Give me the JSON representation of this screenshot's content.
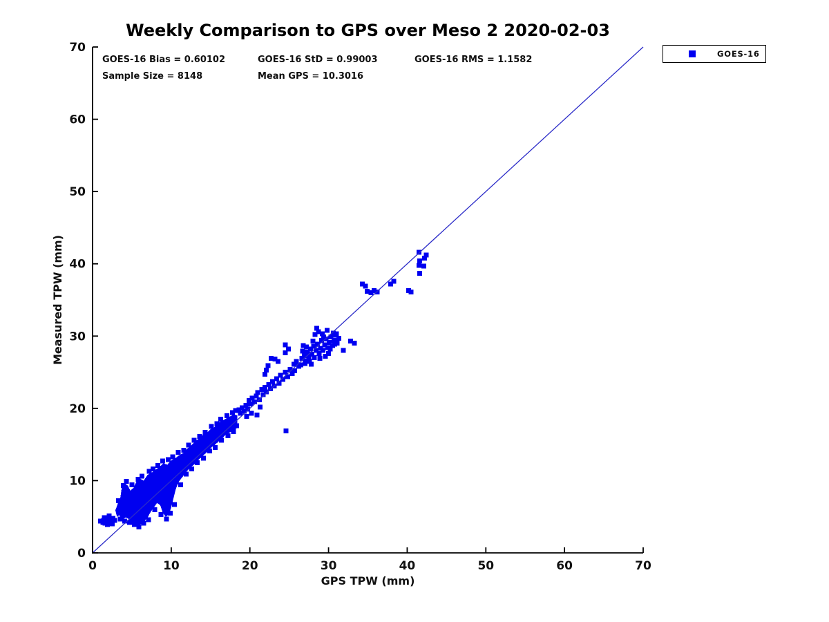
{
  "title": "Weekly Comparison to GPS over Meso 2 2020-02-03",
  "stats_text": {
    "bias": "GOES-16 Bias = 0.60102",
    "std": "GOES-16 StD = 0.99003",
    "rms": "GOES-16 RMS = 1.1582",
    "sample_size": "Sample Size = 8148",
    "mean_gps": "Mean GPS = 10.3016"
  },
  "legend": {
    "label": "GOES-16",
    "marker_color": "#0000f0"
  },
  "axes": {
    "xlabel": "GPS TPW (mm)",
    "ylabel": "Measured TPW (mm)"
  },
  "chart_data": {
    "type": "scatter",
    "title": "Weekly Comparison to GPS over Meso 2 2020-02-03",
    "xlabel": "GPS TPW (mm)",
    "ylabel": "Measured TPW (mm)",
    "xlim": [
      0,
      70
    ],
    "ylim": [
      0,
      70
    ],
    "xticks": [
      0,
      10,
      20,
      30,
      40,
      50,
      60,
      70
    ],
    "yticks": [
      0,
      10,
      20,
      30,
      40,
      50,
      60,
      70
    ],
    "grid": false,
    "legend_position": "top-right-outside",
    "stats": {
      "bias": 0.60102,
      "std": 0.99003,
      "rms": 1.1582,
      "sample_size": 8148,
      "mean_gps": 10.3016
    },
    "identity_line": {
      "from": [
        0,
        0
      ],
      "to": [
        70,
        70
      ],
      "color": "#2b2bc8"
    },
    "series": [
      {
        "name": "GOES-16",
        "marker": "square",
        "color": "#0000f0",
        "marker_size_px": 7,
        "band_top": [
          [
            2.9,
            5.9
          ],
          [
            3.2,
            6.8
          ],
          [
            3.5,
            7.4
          ],
          [
            3.7,
            8.9
          ],
          [
            4.1,
            9.6
          ],
          [
            4.5,
            9.3
          ],
          [
            4.8,
            8.6
          ],
          [
            5.2,
            9.0
          ],
          [
            5.6,
            9.9
          ],
          [
            6.0,
            10.3
          ],
          [
            6.5,
            10.0
          ],
          [
            7.0,
            10.8
          ],
          [
            7.5,
            11.1
          ],
          [
            8.0,
            11.5
          ],
          [
            8.5,
            11.9
          ],
          [
            9.0,
            12.4
          ],
          [
            9.5,
            12.2
          ],
          [
            10.0,
            12.8
          ],
          [
            10.5,
            13.1
          ],
          [
            11.0,
            13.5
          ],
          [
            11.5,
            13.8
          ],
          [
            12.0,
            14.4
          ],
          [
            12.5,
            14.8
          ],
          [
            13.0,
            15.4
          ],
          [
            13.5,
            15.8
          ],
          [
            14.0,
            16.3
          ],
          [
            14.5,
            16.6
          ],
          [
            15.0,
            17.1
          ],
          [
            15.5,
            17.4
          ],
          [
            16.0,
            18.0
          ],
          [
            16.5,
            18.3
          ],
          [
            17.0,
            18.6
          ],
          [
            17.5,
            18.9
          ],
          [
            18.0,
            19.2
          ],
          [
            18.4,
            19.0
          ],
          [
            18.4,
            17.3
          ]
        ],
        "band_bottom": [
          [
            18.0,
            17.0
          ],
          [
            17.5,
            16.7
          ],
          [
            17.0,
            16.4
          ],
          [
            16.5,
            15.9
          ],
          [
            16.0,
            15.4
          ],
          [
            15.5,
            14.9
          ],
          [
            15.0,
            14.5
          ],
          [
            14.5,
            13.9
          ],
          [
            14.0,
            13.4
          ],
          [
            13.5,
            12.9
          ],
          [
            13.0,
            12.3
          ],
          [
            12.5,
            11.9
          ],
          [
            12.0,
            11.3
          ],
          [
            11.5,
            10.6
          ],
          [
            11.0,
            9.9
          ],
          [
            10.6,
            8.9
          ],
          [
            10.3,
            7.6
          ],
          [
            10.0,
            6.3
          ],
          [
            9.7,
            5.3
          ],
          [
            9.3,
            5.0
          ],
          [
            8.9,
            5.6
          ],
          [
            8.6,
            6.6
          ],
          [
            8.2,
            6.9
          ],
          [
            7.8,
            6.3
          ],
          [
            7.4,
            5.7
          ],
          [
            7.0,
            4.9
          ],
          [
            6.6,
            4.4
          ],
          [
            6.2,
            4.0
          ],
          [
            5.8,
            3.8
          ],
          [
            5.4,
            4.1
          ],
          [
            5.0,
            4.0
          ],
          [
            4.6,
            4.7
          ],
          [
            4.2,
            4.9
          ],
          [
            3.8,
            4.6
          ],
          [
            3.4,
            5.2
          ],
          [
            3.1,
            5.0
          ]
        ],
        "points": [
          [
            1.0,
            4.4
          ],
          [
            1.3,
            4.2
          ],
          [
            1.4,
            4.5
          ],
          [
            1.5,
            4.9
          ],
          [
            1.6,
            4.1
          ],
          [
            1.8,
            4.6
          ],
          [
            1.9,
            3.9
          ],
          [
            2.0,
            4.2
          ],
          [
            2.1,
            5.1
          ],
          [
            2.2,
            4.7
          ],
          [
            2.4,
            4.3
          ],
          [
            2.5,
            4.0
          ],
          [
            2.6,
            4.8
          ],
          [
            2.8,
            4.5
          ],
          [
            3.3,
            7.2
          ],
          [
            3.9,
            9.3
          ],
          [
            4.3,
            9.9
          ],
          [
            5.0,
            9.4
          ],
          [
            5.8,
            10.2
          ],
          [
            6.3,
            10.6
          ],
          [
            7.2,
            11.3
          ],
          [
            7.7,
            11.6
          ],
          [
            8.3,
            12.1
          ],
          [
            8.9,
            12.7
          ],
          [
            9.6,
            12.9
          ],
          [
            10.2,
            13.3
          ],
          [
            10.9,
            13.9
          ],
          [
            11.6,
            14.2
          ],
          [
            12.2,
            14.9
          ],
          [
            12.9,
            15.6
          ],
          [
            13.6,
            16.1
          ],
          [
            14.3,
            16.7
          ],
          [
            15.1,
            17.5
          ],
          [
            15.8,
            17.9
          ],
          [
            16.3,
            18.5
          ],
          [
            17.1,
            19.0
          ],
          [
            17.8,
            19.4
          ],
          [
            18.2,
            19.7
          ],
          [
            3.5,
            4.7
          ],
          [
            4.1,
            4.4
          ],
          [
            4.7,
            4.2
          ],
          [
            5.3,
            3.9
          ],
          [
            5.9,
            3.6
          ],
          [
            6.5,
            4.1
          ],
          [
            7.1,
            4.6
          ],
          [
            7.9,
            6.0
          ],
          [
            8.7,
            5.3
          ],
          [
            9.4,
            4.7
          ],
          [
            9.9,
            5.5
          ],
          [
            10.4,
            6.7
          ],
          [
            11.2,
            9.4
          ],
          [
            11.9,
            10.9
          ],
          [
            12.6,
            11.6
          ],
          [
            13.3,
            12.5
          ],
          [
            14.1,
            13.1
          ],
          [
            14.9,
            14.1
          ],
          [
            15.6,
            14.6
          ],
          [
            16.4,
            15.6
          ],
          [
            17.2,
            16.2
          ],
          [
            17.9,
            16.8
          ],
          [
            18.3,
            17.6
          ],
          [
            18.6,
            19.8
          ],
          [
            18.8,
            19.3
          ],
          [
            19.0,
            20.1
          ],
          [
            19.3,
            19.6
          ],
          [
            19.5,
            20.4
          ],
          [
            19.6,
            18.9
          ],
          [
            19.7,
            19.9
          ],
          [
            19.9,
            21.1
          ],
          [
            20.1,
            20.6
          ],
          [
            20.2,
            19.3
          ],
          [
            20.3,
            21.4
          ],
          [
            20.6,
            20.9
          ],
          [
            20.8,
            21.7
          ],
          [
            20.9,
            19.1
          ],
          [
            21.0,
            22.2
          ],
          [
            21.2,
            21.2
          ],
          [
            21.3,
            20.2
          ],
          [
            21.5,
            22.6
          ],
          [
            21.7,
            21.9
          ],
          [
            21.9,
            22.9
          ],
          [
            21.9,
            24.7
          ],
          [
            22.1,
            22.3
          ],
          [
            22.1,
            25.3
          ],
          [
            22.3,
            25.9
          ],
          [
            22.4,
            23.3
          ],
          [
            22.6,
            22.7
          ],
          [
            22.7,
            26.9
          ],
          [
            22.9,
            23.7
          ],
          [
            23.1,
            23.1
          ],
          [
            23.2,
            26.8
          ],
          [
            23.4,
            24.1
          ],
          [
            23.6,
            26.5
          ],
          [
            23.7,
            23.5
          ],
          [
            23.9,
            24.6
          ],
          [
            24.2,
            24.0
          ],
          [
            24.5,
            25.0
          ],
          [
            24.5,
            27.7
          ],
          [
            24.5,
            28.8
          ],
          [
            24.8,
            24.4
          ],
          [
            24.9,
            28.2
          ],
          [
            25.1,
            25.4
          ],
          [
            25.4,
            24.8
          ],
          [
            25.6,
            26.1
          ],
          [
            25.7,
            25.2
          ],
          [
            25.9,
            26.5
          ],
          [
            26.2,
            25.8
          ],
          [
            26.5,
            26.0
          ],
          [
            26.6,
            26.9
          ],
          [
            26.7,
            27.9
          ],
          [
            26.8,
            28.7
          ],
          [
            26.9,
            27.3
          ],
          [
            27.0,
            26.2
          ],
          [
            27.1,
            26.6
          ],
          [
            27.2,
            28.5
          ],
          [
            27.3,
            27.8
          ],
          [
            27.5,
            27.1
          ],
          [
            27.6,
            26.5
          ],
          [
            27.7,
            28.2
          ],
          [
            27.8,
            26.1
          ],
          [
            27.9,
            27.5
          ],
          [
            28.0,
            29.3
          ],
          [
            28.1,
            28.6
          ],
          [
            28.2,
            27.0
          ],
          [
            28.3,
            30.2
          ],
          [
            28.4,
            28.0
          ],
          [
            28.5,
            31.1
          ],
          [
            28.6,
            28.9
          ],
          [
            28.7,
            30.6
          ],
          [
            28.8,
            27.6
          ],
          [
            28.9,
            26.9
          ],
          [
            29.0,
            28.3
          ],
          [
            29.1,
            29.4
          ],
          [
            29.2,
            30.3
          ],
          [
            29.3,
            28.0
          ],
          [
            29.4,
            29.9
          ],
          [
            29.5,
            28.8
          ],
          [
            29.6,
            27.2
          ],
          [
            29.7,
            29.6
          ],
          [
            29.8,
            30.8
          ],
          [
            29.9,
            28.4
          ],
          [
            30.0,
            27.6
          ],
          [
            30.1,
            29.1
          ],
          [
            30.2,
            28.2
          ],
          [
            30.3,
            29.9
          ],
          [
            30.5,
            28.7
          ],
          [
            30.6,
            30.4
          ],
          [
            30.7,
            29.4
          ],
          [
            30.8,
            28.9
          ],
          [
            30.9,
            30.1
          ],
          [
            31.0,
            30.3
          ],
          [
            31.1,
            29.0
          ],
          [
            31.3,
            29.7
          ],
          [
            24.6,
            16.9
          ],
          [
            31.9,
            28.0
          ],
          [
            32.8,
            29.3
          ],
          [
            33.3,
            29.0
          ],
          [
            34.3,
            37.2
          ],
          [
            34.7,
            36.9
          ],
          [
            34.9,
            36.2
          ],
          [
            35.4,
            36.0
          ],
          [
            35.8,
            36.3
          ],
          [
            36.2,
            36.1
          ],
          [
            37.9,
            37.2
          ],
          [
            38.3,
            37.6
          ],
          [
            40.2,
            36.3
          ],
          [
            40.5,
            36.1
          ],
          [
            41.5,
            41.6
          ],
          [
            42.4,
            41.2
          ],
          [
            41.6,
            40.4
          ],
          [
            42.2,
            40.8
          ],
          [
            41.5,
            39.8
          ],
          [
            42.1,
            39.7
          ],
          [
            41.6,
            38.7
          ]
        ]
      }
    ]
  }
}
